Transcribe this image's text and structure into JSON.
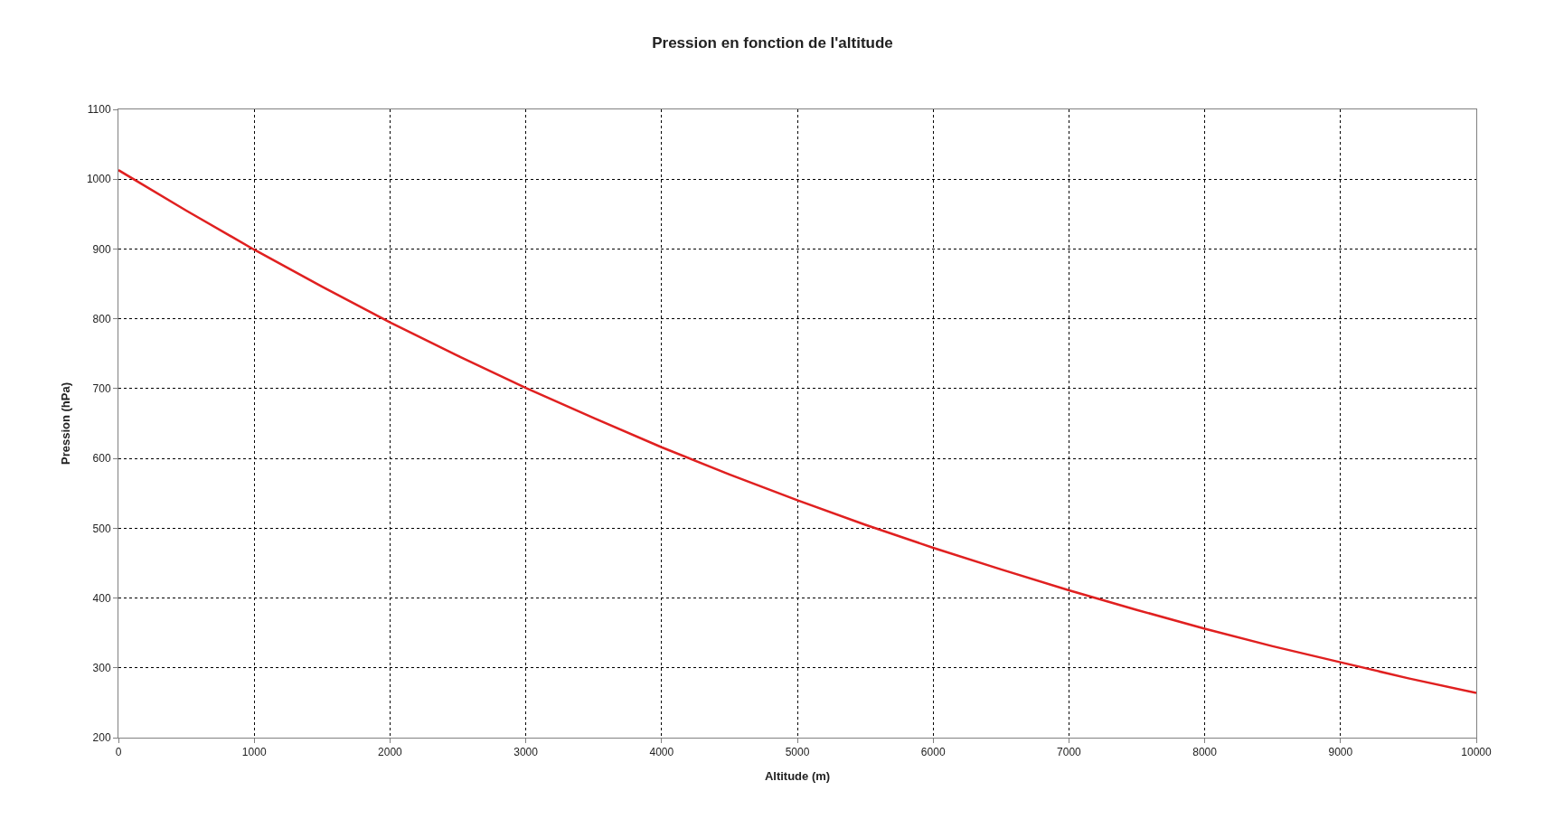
{
  "chart_data": {
    "type": "line",
    "title": "Pression en fonction de l'altitude",
    "xlabel": "Altitude (m)",
    "ylabel": "Pression (hPa)",
    "x": [
      0,
      500,
      1000,
      1500,
      2000,
      2500,
      3000,
      3500,
      4000,
      4500,
      5000,
      5500,
      6000,
      6500,
      7000,
      7500,
      8000,
      8500,
      9000,
      9500,
      10000
    ],
    "series": [
      {
        "color": "#e02020",
        "values": [
          1013,
          955,
          899,
          846,
          795,
          747,
          701,
          658,
          616,
          577,
          540,
          505,
          472,
          441,
          411,
          383,
          356,
          331,
          308,
          285,
          264
        ]
      }
    ],
    "xlim": [
      0,
      10000
    ],
    "xticks": [
      0,
      1000,
      2000,
      3000,
      4000,
      5000,
      6000,
      7000,
      8000,
      9000,
      10000
    ],
    "ylim": [
      200,
      1100
    ],
    "yticks": [
      200,
      300,
      400,
      500,
      600,
      700,
      800,
      900,
      1000,
      1100
    ],
    "grid": true,
    "legend": false,
    "marker": "none",
    "line_style": "solid"
  }
}
